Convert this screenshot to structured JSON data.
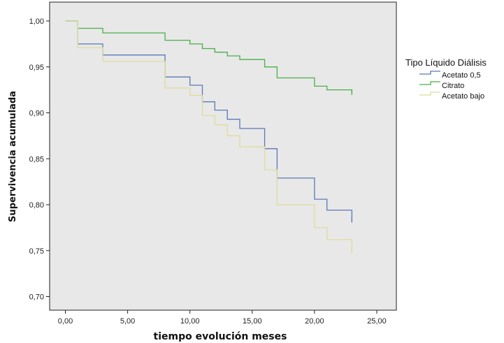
{
  "chart_data": {
    "type": "line",
    "xlabel": "tiempo evolución meses",
    "ylabel": "Supervivencia acumulada",
    "xlim": [
      0,
      25
    ],
    "ylim": [
      0.7,
      1.0
    ],
    "x_ticks": [
      "0,00",
      "5,00",
      "10,00",
      "15,00",
      "20,00",
      "25,00"
    ],
    "y_ticks": [
      "0,70",
      "0,75",
      "0,80",
      "0,85",
      "0,90",
      "0,95",
      "1,00"
    ],
    "grid": false,
    "legend_placement": "right",
    "legend_title": "Tipo Líquido Diálisis",
    "plot_background": "#e8e8e8",
    "series": [
      {
        "name": "Acetato 0,5",
        "color": "#5b78b8",
        "x": [
          0,
          1,
          3,
          8,
          10,
          11,
          12,
          13,
          14,
          16,
          17,
          20,
          21,
          23,
          23
        ],
        "y": [
          1.0,
          0.975,
          0.963,
          0.939,
          0.93,
          0.912,
          0.903,
          0.893,
          0.883,
          0.861,
          0.829,
          0.806,
          0.794,
          0.782,
          0.782
        ]
      },
      {
        "name": "Citrato",
        "color": "#48b048",
        "x": [
          0,
          1,
          3,
          8,
          10,
          11,
          12,
          13,
          14,
          16,
          17,
          20,
          21,
          23,
          23
        ],
        "y": [
          1.0,
          0.992,
          0.987,
          0.979,
          0.975,
          0.97,
          0.966,
          0.962,
          0.958,
          0.95,
          0.938,
          0.929,
          0.925,
          0.921,
          0.921
        ]
      },
      {
        "name": "Acetato bajo",
        "color": "#dedc9c",
        "x": [
          0,
          1,
          3,
          8,
          10,
          11,
          12,
          13,
          14,
          16,
          17,
          20,
          21,
          23,
          23
        ],
        "y": [
          1.0,
          0.971,
          0.956,
          0.927,
          0.919,
          0.897,
          0.887,
          0.875,
          0.863,
          0.838,
          0.8,
          0.775,
          0.762,
          0.748,
          0.748
        ]
      }
    ]
  }
}
